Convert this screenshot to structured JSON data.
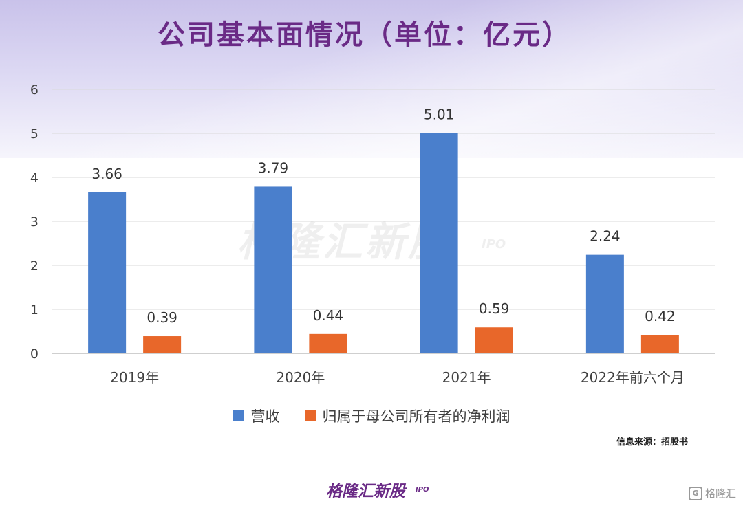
{
  "title": "公司基本面情况（单位：亿元）",
  "source": "信息来源：招股书",
  "watermark": {
    "main": "格隆汇新股",
    "sub": "IPO"
  },
  "footer": {
    "logo": "格隆汇新股",
    "sub": "IPO",
    "corner": "格隆汇"
  },
  "colors": {
    "revenue": "#4a7fcc",
    "profit": "#e8672a",
    "title": "#6a2a86"
  },
  "chart_data": {
    "type": "bar",
    "categories": [
      "2019年",
      "2020年",
      "2021年",
      "2022年前六个月"
    ],
    "series": [
      {
        "name": "营收",
        "values": [
          3.66,
          3.79,
          5.01,
          2.24
        ],
        "labels": [
          "3.66",
          "3.79",
          "5.01",
          "2.24"
        ]
      },
      {
        "name": "归属于母公司所有者的净利润",
        "values": [
          0.39,
          0.44,
          0.59,
          0.42
        ],
        "labels": [
          "0.39",
          "0.44",
          "0.59",
          "0.42"
        ]
      }
    ],
    "ylim": [
      0,
      6
    ],
    "yticks": [
      "0",
      "1",
      "2",
      "3",
      "4",
      "5",
      "6"
    ],
    "grid": true,
    "legend": "bottom"
  }
}
